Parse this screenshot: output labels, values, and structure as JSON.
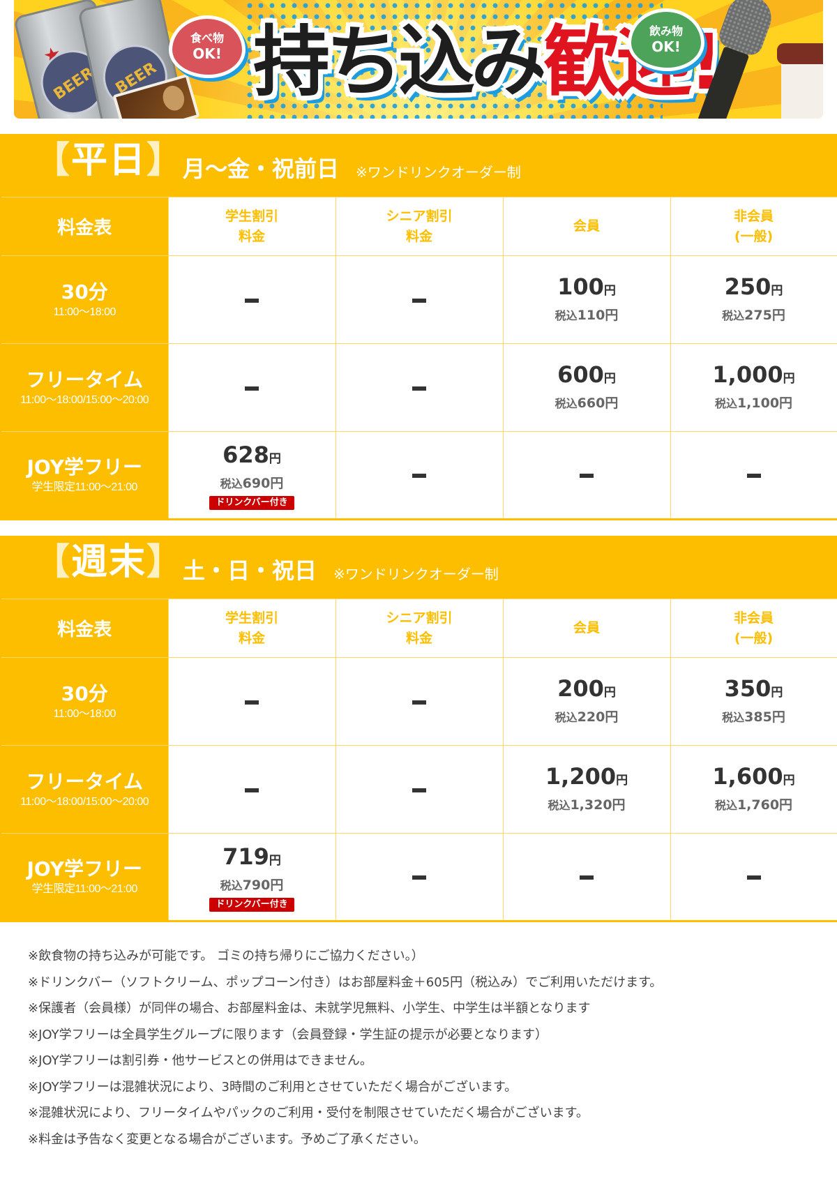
{
  "banner": {
    "headline_black": "持ち込み",
    "headline_red": "歓迎!",
    "bubble_food": {
      "line1": "食べ物",
      "line2": "OK!"
    },
    "bubble_drink": {
      "line1": "飲み物",
      "line2": "OK!"
    },
    "can_label": "BEER",
    "icons": [
      "beer-can-icon",
      "chips-box-icon",
      "microphone-icon",
      "drink-cup-icon"
    ]
  },
  "colors": {
    "accent_yellow": "#FDBE00",
    "badge_red": "#CC0000",
    "text_dark": "#333333",
    "text_gray": "#666666"
  },
  "tables": [
    {
      "title_open": "【",
      "title": "平日",
      "title_close": "】",
      "days": "月〜金・祝前日",
      "note": "※ワンドリンクオーダー制",
      "corner": "料金表",
      "columns": [
        {
          "line1": "学生割引",
          "line2": "料金"
        },
        {
          "line1": "シニア割引",
          "line2": "料金"
        },
        {
          "line1": "会員",
          "line2": ""
        },
        {
          "line1": "非会員",
          "line2": "(一般)"
        }
      ],
      "rows": [
        {
          "name": "30分",
          "time": "11:00〜18:00",
          "cells": [
            {
              "dash": true
            },
            {
              "dash": true
            },
            {
              "price": "100",
              "yen": "円",
              "tax_label": "税込",
              "tax_price": "110円"
            },
            {
              "price": "250",
              "yen": "円",
              "tax_label": "税込",
              "tax_price": "275円"
            }
          ]
        },
        {
          "name": "フリータイム",
          "time": "11:00〜18:00/15:00〜20:00",
          "cells": [
            {
              "dash": true
            },
            {
              "dash": true
            },
            {
              "price": "600",
              "yen": "円",
              "tax_label": "税込",
              "tax_price": "660円"
            },
            {
              "price": "1,000",
              "yen": "円",
              "tax_label": "税込",
              "tax_price": "1,100円"
            }
          ]
        },
        {
          "name": "JOY学フリー",
          "time": "学生限定11:00〜21:00",
          "cells": [
            {
              "price": "628",
              "yen": "円",
              "tax_label": "税込",
              "tax_price": "690円",
              "badge": "ドリンクバー付き"
            },
            {
              "dash": true
            },
            {
              "dash": true
            },
            {
              "dash": true
            }
          ]
        }
      ]
    },
    {
      "title_open": "【",
      "title": "週末",
      "title_close": "】",
      "days": "土・日・祝日",
      "note": "※ワンドリンクオーダー制",
      "corner": "料金表",
      "columns": [
        {
          "line1": "学生割引",
          "line2": "料金"
        },
        {
          "line1": "シニア割引",
          "line2": "料金"
        },
        {
          "line1": "会員",
          "line2": ""
        },
        {
          "line1": "非会員",
          "line2": "(一般)"
        }
      ],
      "rows": [
        {
          "name": "30分",
          "time": "11:00〜18:00",
          "cells": [
            {
              "dash": true
            },
            {
              "dash": true
            },
            {
              "price": "200",
              "yen": "円",
              "tax_label": "税込",
              "tax_price": "220円"
            },
            {
              "price": "350",
              "yen": "円",
              "tax_label": "税込",
              "tax_price": "385円"
            }
          ]
        },
        {
          "name": "フリータイム",
          "time": "11:00〜18:00/15:00〜20:00",
          "cells": [
            {
              "dash": true
            },
            {
              "dash": true
            },
            {
              "price": "1,200",
              "yen": "円",
              "tax_label": "税込",
              "tax_price": "1,320円"
            },
            {
              "price": "1,600",
              "yen": "円",
              "tax_label": "税込",
              "tax_price": "1,760円"
            }
          ]
        },
        {
          "name": "JOY学フリー",
          "time": "学生限定11:00〜21:00",
          "cells": [
            {
              "price": "719",
              "yen": "円",
              "tax_label": "税込",
              "tax_price": "790円",
              "badge": "ドリンクバー付き"
            },
            {
              "dash": true
            },
            {
              "dash": true
            },
            {
              "dash": true
            }
          ]
        }
      ]
    }
  ],
  "notes": [
    "※飲食物の持ち込みが可能です。 ゴミの持ち帰りにご協力ください。）",
    "※ドリンクバー（ソフトクリーム、ポップコーン付き）はお部屋料金＋605円（税込み）でご利用いただけます。",
    "※保護者（会員様）が同伴の場合、お部屋料金は、未就学児無料、小学生、中学生は半額となります",
    "※JOY学フリーは全員学生グループに限ります（会員登録・学生証の提示が必要となります）",
    "※JOY学フリーは割引券・他サービスとの併用はできません。",
    "※JOY学フリーは混雑状況により、3時間のご利用とさせていただく場合がございます。",
    "※混雑状況により、フリータイムやパックのご利用・受付を制限させていただく場合がございます。",
    "※料金は予告なく変更となる場合がございます。予めご了承ください。"
  ]
}
